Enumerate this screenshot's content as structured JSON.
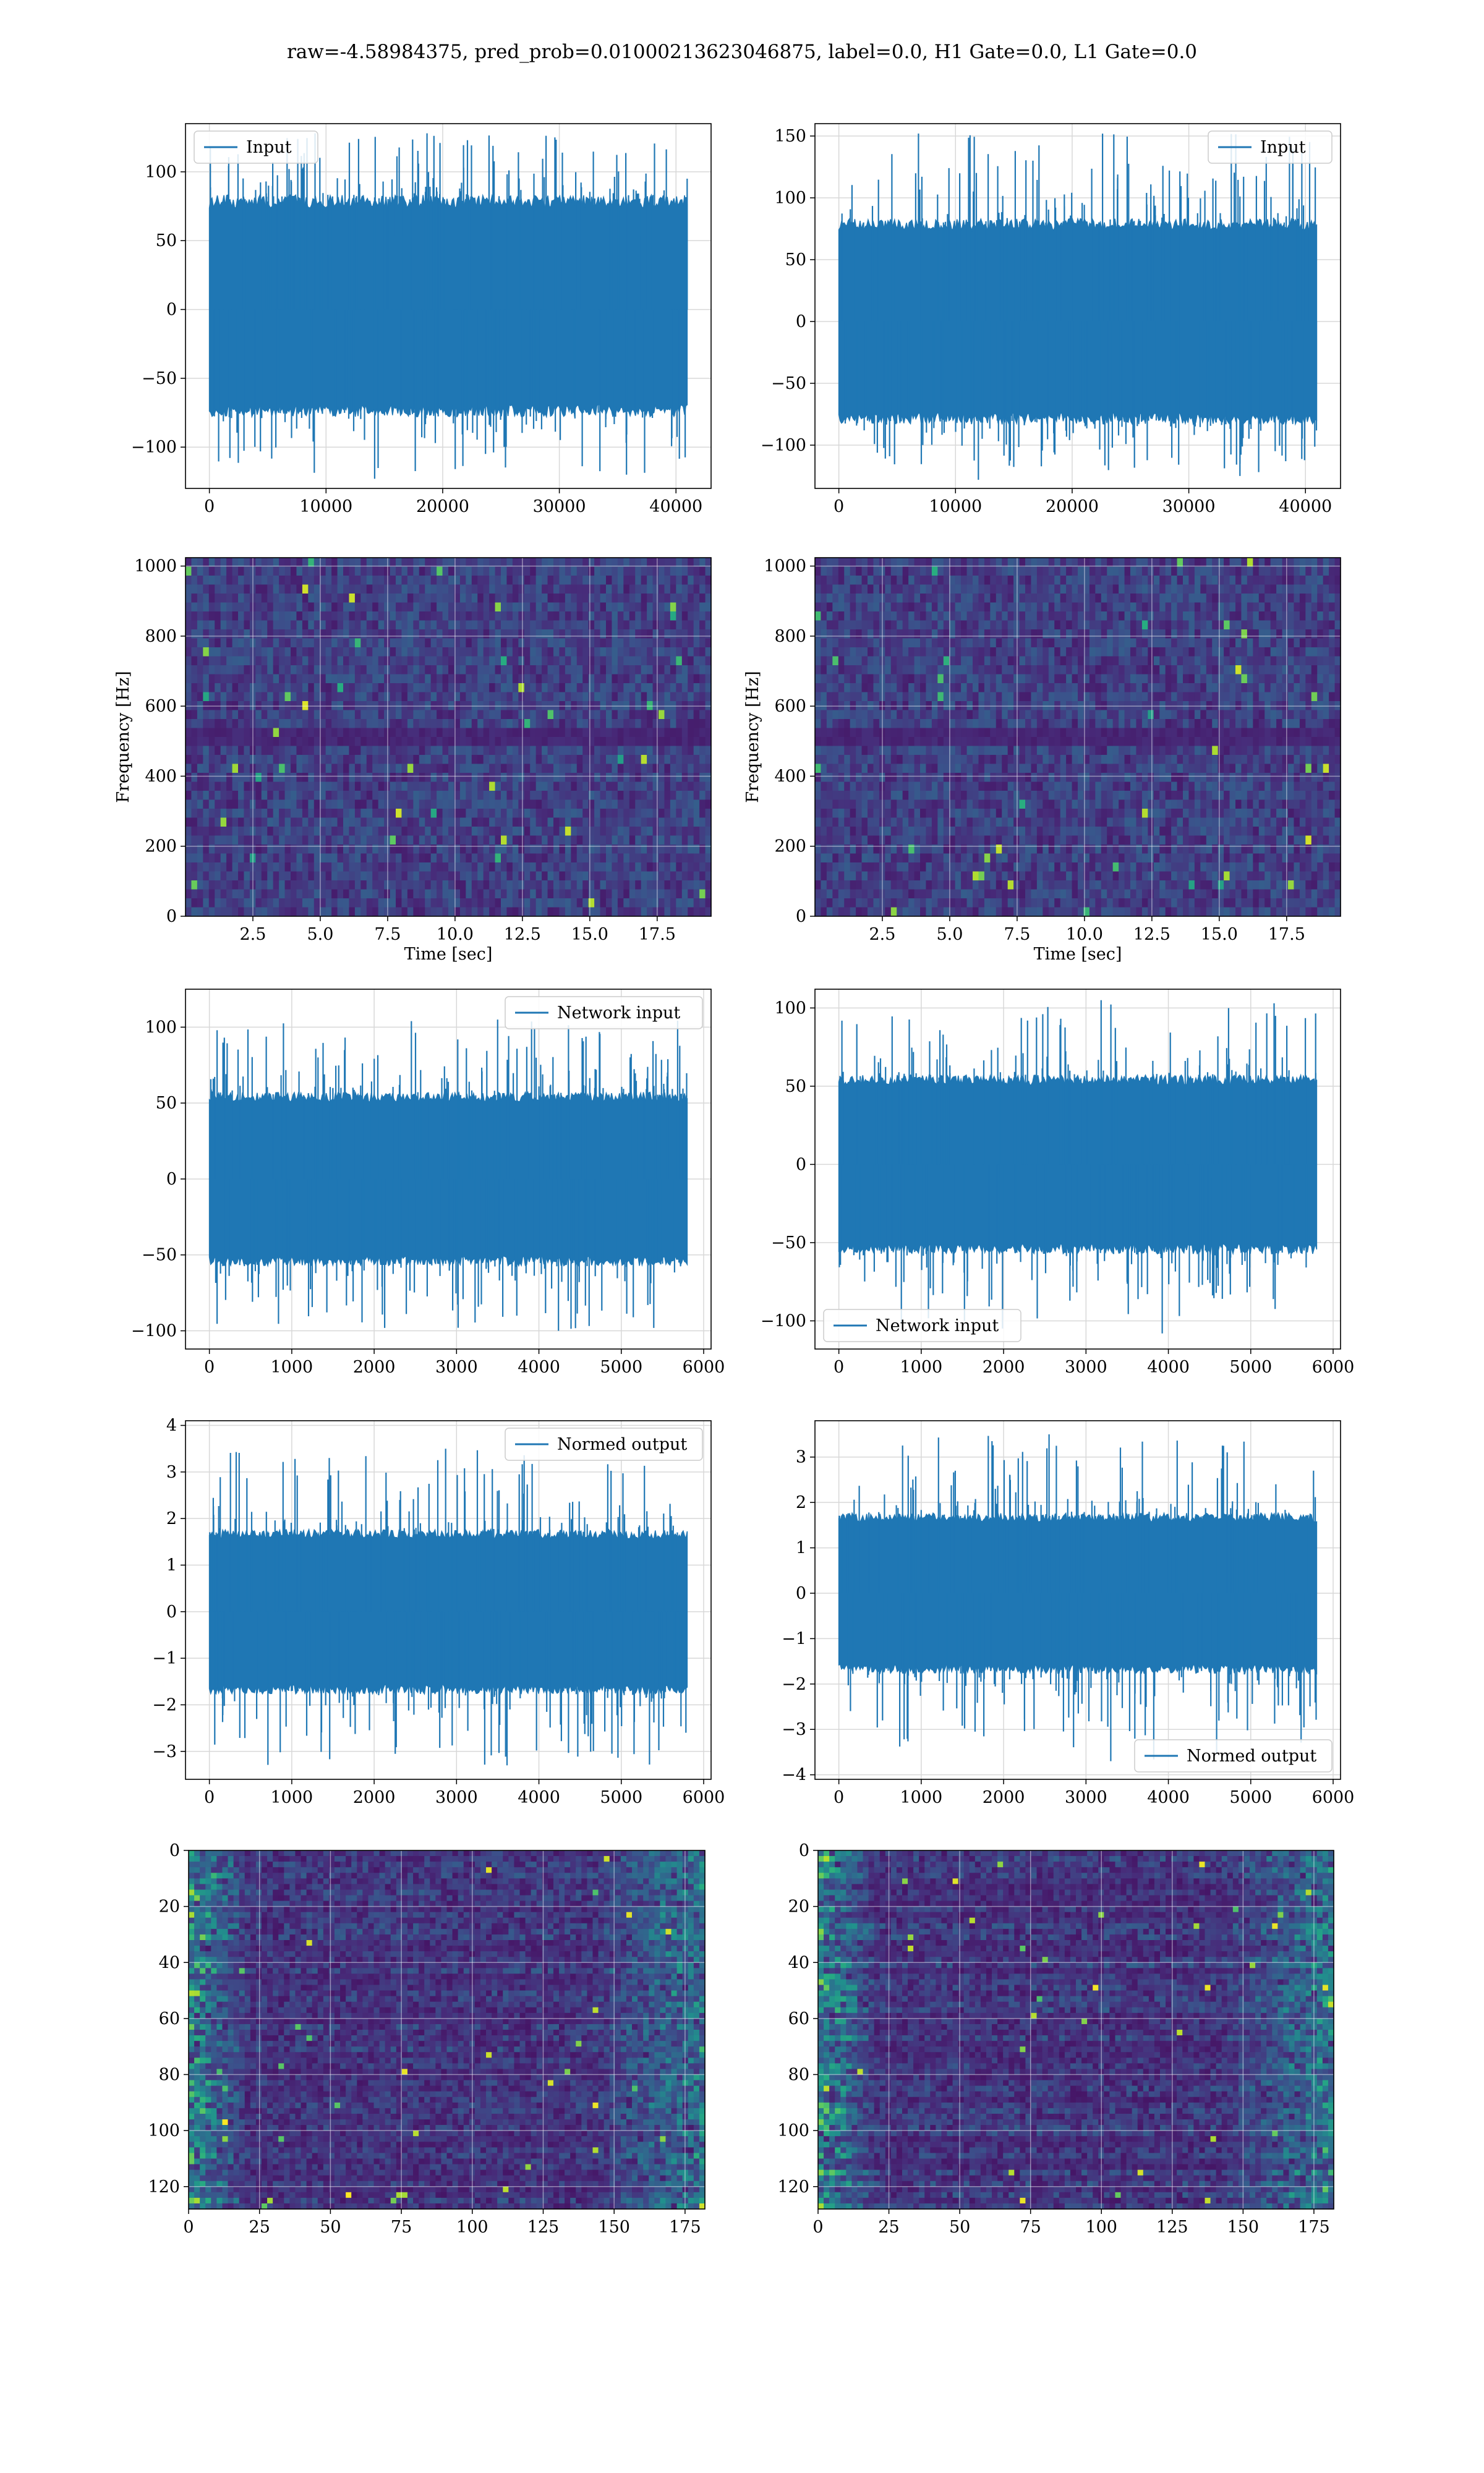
{
  "suptitle": "raw=-4.58984375, pred_prob=0.01000213623046875, label=0.0, H1 Gate=0.0, L1 Gate=0.0",
  "colors": {
    "line": "#1f77b4",
    "grid": "#d8d8d8",
    "viridis_dark": "#440154",
    "viridis_teal": "#21908c",
    "viridis_yellow": "#fde725"
  },
  "chart_data": [
    {
      "type": "line",
      "panel": "r1-left",
      "legend": "Input",
      "legend_loc": "upper left",
      "x_range": [
        0,
        40960
      ],
      "ylim": [
        -130,
        135
      ],
      "xticks": [
        0,
        10000,
        20000,
        30000,
        40000
      ],
      "yticks": [
        -100,
        -50,
        0,
        50,
        100
      ],
      "envelope_upper": 80,
      "envelope_lower": -75,
      "peak_max": 128,
      "peak_min": -123
    },
    {
      "type": "line",
      "panel": "r1-right",
      "legend": "Input",
      "legend_loc": "upper right",
      "x_range": [
        0,
        40960
      ],
      "ylim": [
        -135,
        160
      ],
      "xticks": [
        0,
        10000,
        20000,
        30000,
        40000
      ],
      "yticks": [
        -100,
        -50,
        0,
        50,
        100,
        150
      ],
      "envelope_upper": 80,
      "envelope_lower": -80,
      "peak_max": 152,
      "peak_min": -128
    },
    {
      "type": "heatmap",
      "panel": "r2-left",
      "ylabel": "Frequency [Hz]",
      "xlabel": "Time [sec]",
      "xlim": [
        0,
        19.5
      ],
      "ylim": [
        0,
        1024
      ],
      "xticks": [
        "2.5",
        "5.0",
        "7.5",
        "10.0",
        "12.5",
        "15.0",
        "17.5"
      ],
      "yticks": [
        "0",
        "200",
        "400",
        "600",
        "800",
        "1000"
      ]
    },
    {
      "type": "heatmap",
      "panel": "r2-right",
      "ylabel": "Frequency [Hz]",
      "xlabel": "Time [sec]",
      "xlim": [
        0,
        19.5
      ],
      "ylim": [
        0,
        1024
      ],
      "xticks": [
        "2.5",
        "5.0",
        "7.5",
        "10.0",
        "12.5",
        "15.0",
        "17.5"
      ],
      "yticks": [
        "0",
        "200",
        "400",
        "600",
        "800",
        "1000"
      ]
    },
    {
      "type": "line",
      "panel": "r3-left",
      "legend": "Network input",
      "legend_loc": "upper right",
      "x_range": [
        0,
        5800
      ],
      "ylim": [
        -112,
        125
      ],
      "xticks": [
        0,
        1000,
        2000,
        3000,
        4000,
        5000,
        6000
      ],
      "yticks": [
        -100,
        -50,
        0,
        50,
        100
      ],
      "envelope_upper": 55,
      "envelope_lower": -55,
      "peak_max": 105,
      "peak_min": -100
    },
    {
      "type": "line",
      "panel": "r3-right",
      "legend": "Network input",
      "legend_loc": "lower left",
      "x_range": [
        0,
        5800
      ],
      "ylim": [
        -118,
        112
      ],
      "xticks": [
        0,
        1000,
        2000,
        3000,
        4000,
        5000,
        6000
      ],
      "yticks": [
        -100,
        -50,
        0,
        50,
        100
      ],
      "envelope_upper": 55,
      "envelope_lower": -55,
      "peak_max": 105,
      "peak_min": -108
    },
    {
      "type": "line",
      "panel": "r4-left",
      "legend": "Normed output",
      "legend_loc": "upper right",
      "x_range": [
        0,
        5800
      ],
      "ylim": [
        -3.6,
        4.1
      ],
      "xticks": [
        0,
        1000,
        2000,
        3000,
        4000,
        5000,
        6000
      ],
      "yticks": [
        -3,
        -2,
        -1,
        0,
        1,
        2,
        3,
        4
      ],
      "envelope_upper": 1.7,
      "envelope_lower": -1.7,
      "peak_max": 3.5,
      "peak_min": -3.3
    },
    {
      "type": "line",
      "panel": "r4-right",
      "legend": "Normed output",
      "legend_loc": "lower right",
      "x_range": [
        0,
        5800
      ],
      "ylim": [
        -4.1,
        3.8
      ],
      "xticks": [
        0,
        1000,
        2000,
        3000,
        4000,
        5000,
        6000
      ],
      "yticks": [
        -4,
        -3,
        -2,
        -1,
        0,
        1,
        2,
        3
      ],
      "envelope_upper": 1.7,
      "envelope_lower": -1.7,
      "peak_max": 3.5,
      "peak_min": -3.7
    },
    {
      "type": "heatmap",
      "panel": "r5-left",
      "xlim": [
        0,
        182
      ],
      "ylim": [
        128,
        0
      ],
      "xticks": [
        "0",
        "25",
        "50",
        "75",
        "100",
        "125",
        "150",
        "175"
      ],
      "yticks": [
        "0",
        "20",
        "40",
        "60",
        "80",
        "100",
        "120"
      ]
    },
    {
      "type": "heatmap",
      "panel": "r5-right",
      "xlim": [
        0,
        182
      ],
      "ylim": [
        128,
        0
      ],
      "xticks": [
        "0",
        "25",
        "50",
        "75",
        "100",
        "125",
        "150",
        "175"
      ],
      "yticks": [
        "0",
        "20",
        "40",
        "60",
        "80",
        "100",
        "120"
      ]
    }
  ]
}
